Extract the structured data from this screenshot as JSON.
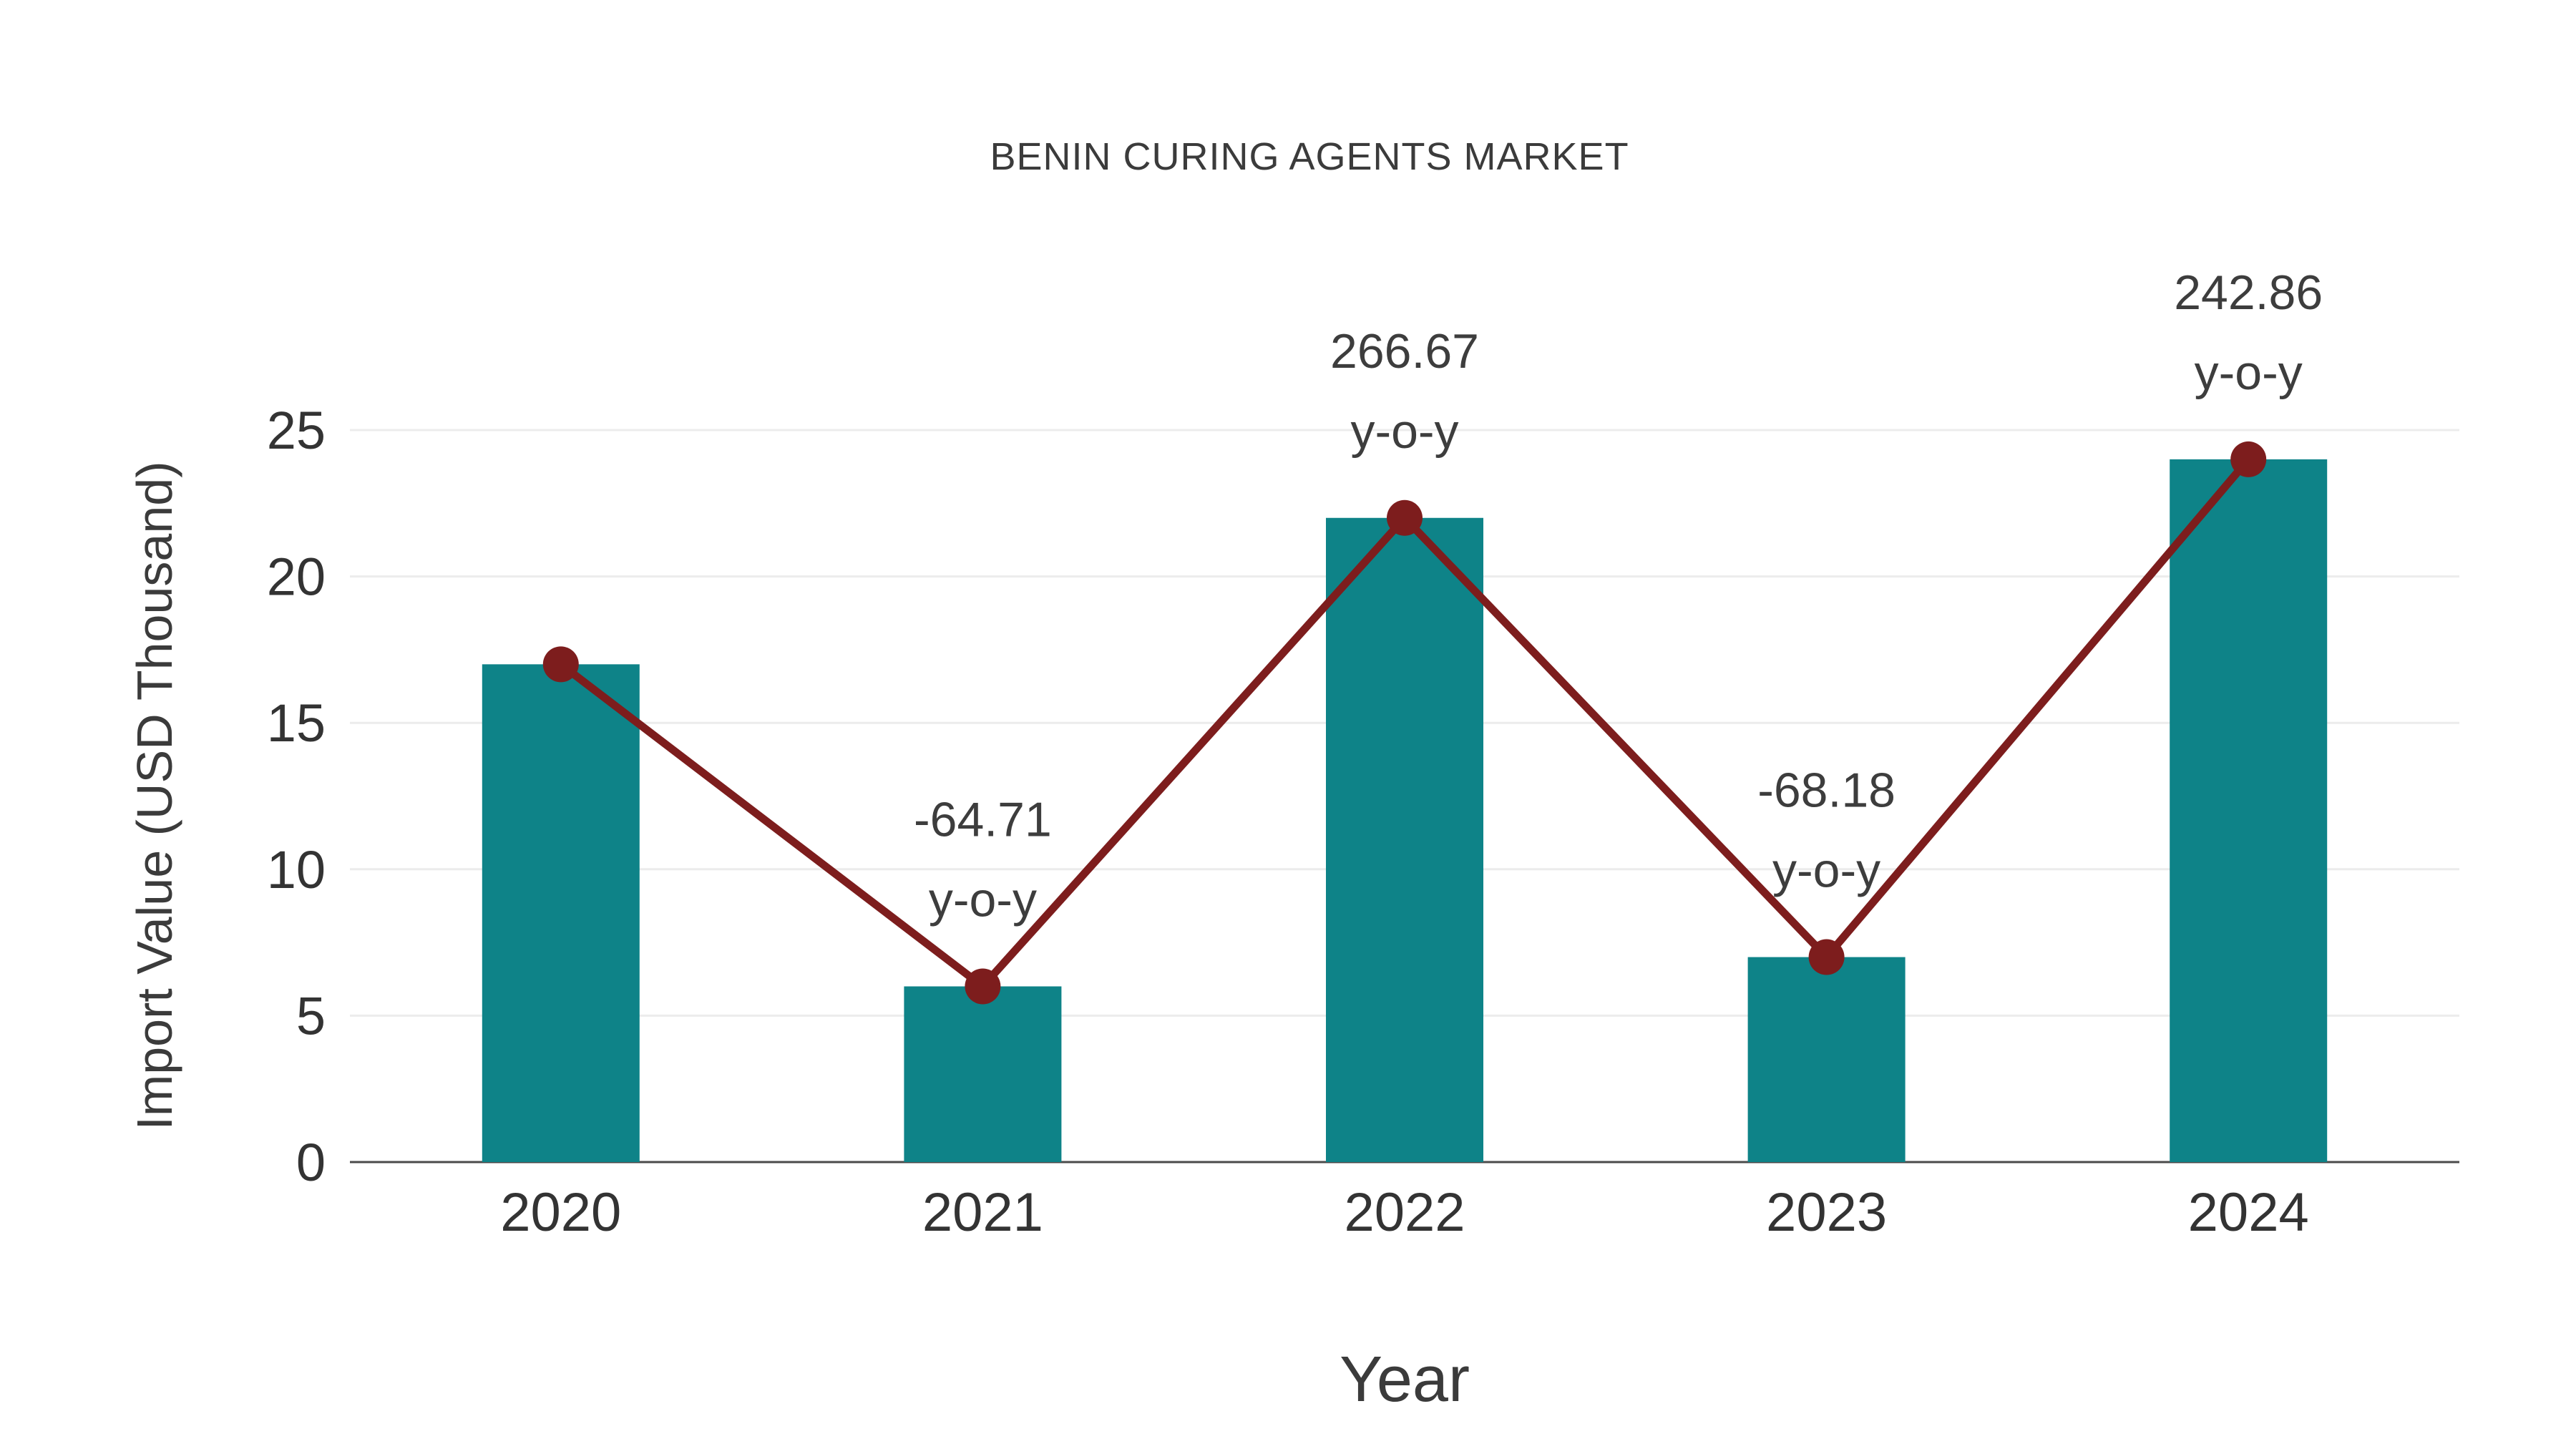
{
  "chart_data": {
    "type": "bar",
    "title": "BENIN CURING AGENTS MARKET",
    "xlabel": "Year",
    "ylabel": "Import Value (USD Thousand)",
    "categories": [
      "2020",
      "2021",
      "2022",
      "2023",
      "2024"
    ],
    "series": [
      {
        "name": "Import Value",
        "type": "bar",
        "values": [
          17,
          6,
          22,
          7,
          24
        ],
        "color": "#0e8388"
      },
      {
        "name": "Y-o-Y Trend",
        "type": "line",
        "values": [
          17,
          6,
          22,
          7,
          24
        ],
        "color": "#7d1d1d"
      }
    ],
    "annotations": [
      {
        "category": "2021",
        "line1": "-64.71",
        "line2": "y-o-y"
      },
      {
        "category": "2022",
        "line1": "266.67",
        "line2": "y-o-y"
      },
      {
        "category": "2023",
        "line1": "-68.18",
        "line2": "y-o-y"
      },
      {
        "category": "2024",
        "line1": "242.86",
        "line2": "y-o-y"
      }
    ],
    "ylim": [
      0,
      25
    ],
    "yticks": [
      0,
      5,
      10,
      15,
      20,
      25
    ],
    "grid": true,
    "legend": "none",
    "style": {
      "background": "#ffffff",
      "grid_color": "#ececec",
      "axis_color": "#4a4a4a",
      "text_color": "#333333",
      "annotation_color": "#3d3d3d",
      "title_color": "#3b3b3b"
    }
  }
}
